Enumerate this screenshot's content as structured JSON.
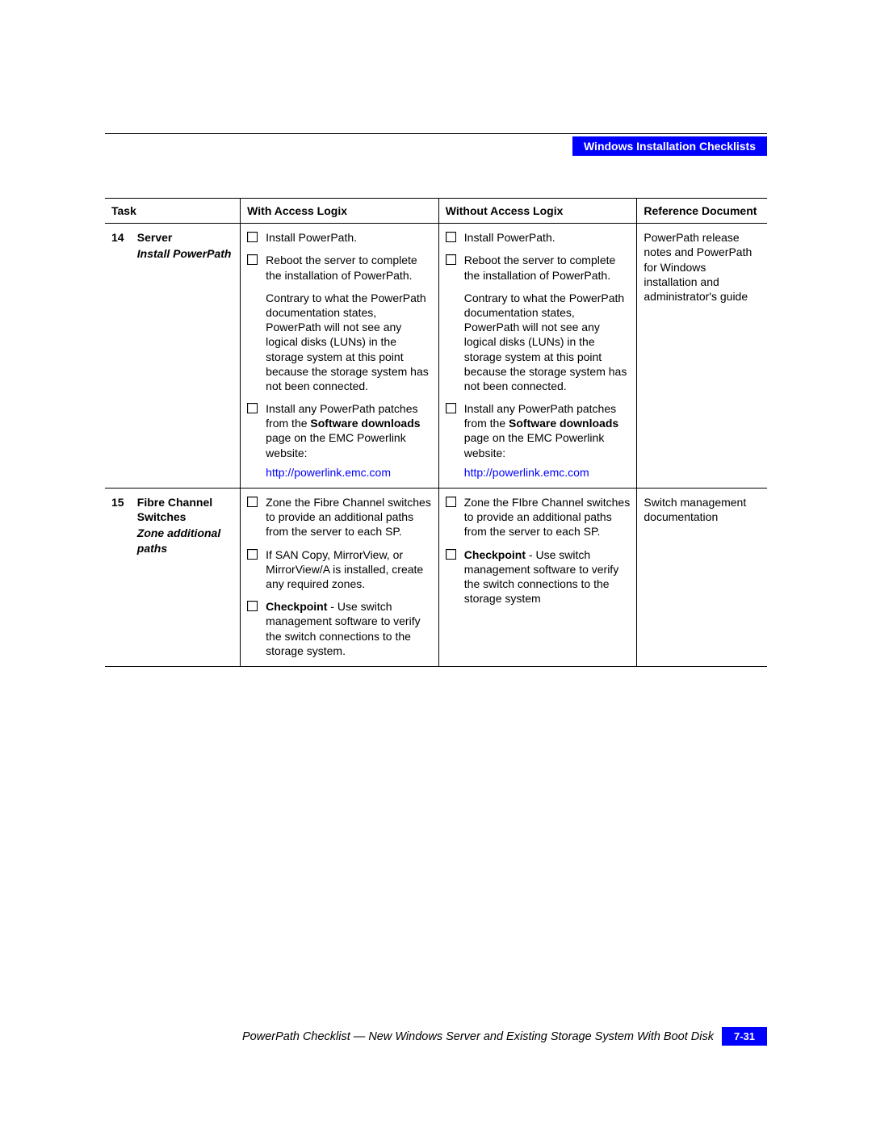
{
  "header": {
    "section": "Windows Installation Checklists"
  },
  "columns": {
    "task": "Task",
    "with": "With Access Logix",
    "without": "Without Access Logix",
    "ref": "Reference Document"
  },
  "rows": [
    {
      "num": "14",
      "title": "Server",
      "sub": "Install PowerPath",
      "with_items": [
        {
          "text": "Install PowerPath."
        },
        {
          "text": "Reboot the server to complete the installation of PowerPath.",
          "note": "Contrary to what the PowerPath documentation states, PowerPath will not see any logical disks (LUNs) in the storage system at this point because the storage system has not been connected."
        },
        {
          "html": "Install any PowerPath patches from the <span class=\"bold\">Software downloads</span> page on the EMC Powerlink website:",
          "link": "http://powerlink.emc.com"
        }
      ],
      "without_items": [
        {
          "text": "Install PowerPath."
        },
        {
          "text": "Reboot the server to complete the installation of PowerPath.",
          "note": "Contrary to what the PowerPath documentation states, PowerPath will not see any logical disks (LUNs) in the storage system at this point because the storage system has not been connected."
        },
        {
          "html": "Install any PowerPath patches from the <span class=\"bold\">Software downloads</span> page on the EMC Powerlink website:",
          "link": "http://powerlink.emc.com"
        }
      ],
      "ref": "PowerPath release notes and PowerPath for Windows installation and administrator's guide"
    },
    {
      "num": "15",
      "title": "Fibre Channel Switches",
      "sub": "Zone additional paths",
      "with_items": [
        {
          "text": "Zone the Fibre Channel switches to provide an additional paths from the server to each SP."
        },
        {
          "text": "If SAN Copy, MirrorView, or MirrorView/A is installed, create any required zones."
        },
        {
          "html": "<span class=\"bold\">Checkpoint</span> - Use switch management software to verify the switch connections to the storage system."
        }
      ],
      "without_items": [
        {
          "text": "Zone the FIbre Channel switches to provide an additional paths from the server to each SP."
        },
        {
          "html": "<span class=\"bold\">Checkpoint</span> - Use switch management software to verify the switch connections to the storage system"
        }
      ],
      "ref": "Switch management documentation"
    }
  ],
  "footer": {
    "title": "PowerPath Checklist — New Windows Server and Existing Storage System With Boot Disk",
    "page": "7-31"
  }
}
